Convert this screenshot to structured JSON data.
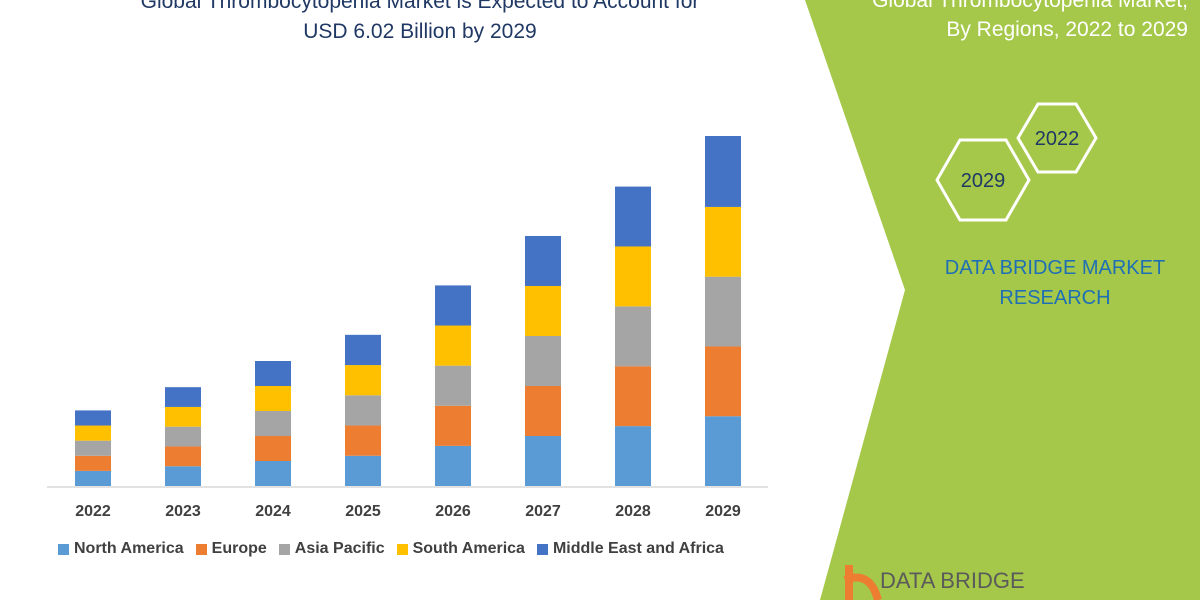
{
  "title_lines": [
    "Global Thrombocytopenia Market is Expected to Account for",
    "USD 6.02 Billion by 2029"
  ],
  "side_title_lines": [
    "Global Thrombocytopenia Market,",
    "By Regions, 2022 to 2029"
  ],
  "hexagons": [
    "2022",
    "2029"
  ],
  "brand_lines": [
    "DATA BRIDGE MARKET",
    "RESEARCH"
  ],
  "logo_text": "DATA BRIDGE",
  "colors": {
    "panel": "#a5c84a",
    "title": "#1f3864",
    "brand": "#1f6fb5"
  },
  "chart_data": {
    "type": "bar",
    "stacked": true,
    "categories": [
      "2022",
      "2023",
      "2024",
      "2025",
      "2026",
      "2027",
      "2028",
      "2029"
    ],
    "series": [
      {
        "name": "North America",
        "color": "#5b9bd5",
        "values": [
          0.26,
          0.34,
          0.43,
          0.52,
          0.69,
          0.86,
          1.03,
          1.2
        ]
      },
      {
        "name": "Europe",
        "color": "#ed7d31",
        "values": [
          0.26,
          0.34,
          0.43,
          0.52,
          0.69,
          0.86,
          1.03,
          1.2
        ]
      },
      {
        "name": "Asia Pacific",
        "color": "#a5a5a5",
        "values": [
          0.26,
          0.34,
          0.43,
          0.52,
          0.69,
          0.86,
          1.03,
          1.2
        ]
      },
      {
        "name": "South America",
        "color": "#ffc000",
        "values": [
          0.26,
          0.34,
          0.43,
          0.52,
          0.69,
          0.86,
          1.03,
          1.2
        ]
      },
      {
        "name": "Middle East and Africa",
        "color": "#4472c4",
        "values": [
          0.26,
          0.34,
          0.43,
          0.52,
          0.69,
          0.86,
          1.03,
          1.22
        ]
      }
    ],
    "ylim": [
      0,
      6.02
    ],
    "axis_labels_shown": false,
    "grid": false,
    "legend": "bottom"
  }
}
